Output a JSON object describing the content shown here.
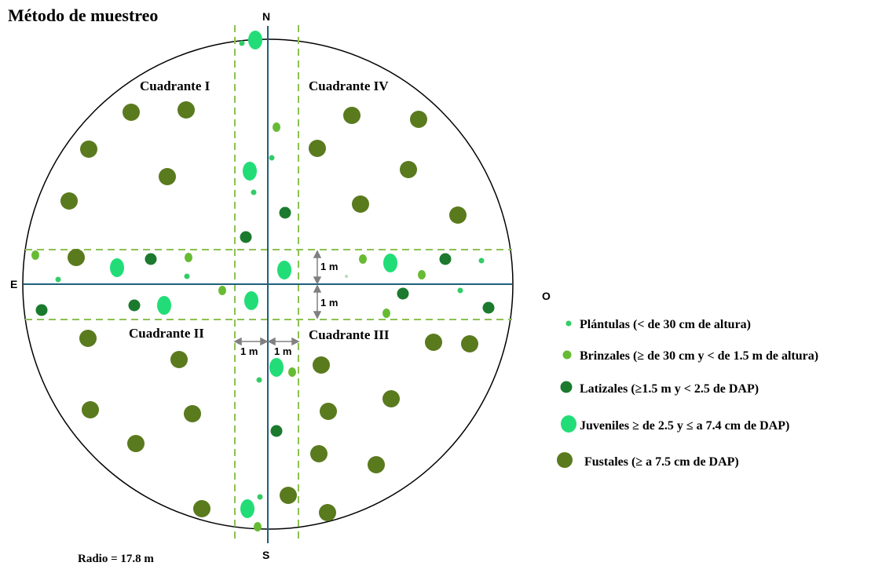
{
  "title": "Método de muestreo",
  "directions": {
    "north": "N",
    "south": "S",
    "east": "E",
    "west": "O"
  },
  "quadrants": [
    "Cuadrante I",
    "Cuadrante II",
    "Cuadrante III",
    "Cuadrante IV"
  ],
  "measures": {
    "one_meter": "1 m"
  },
  "radius_label": "Radio = 17.8 m",
  "legend": [
    {
      "key": "plantulas",
      "label": "Plántulas (< de 30 cm de altura)",
      "color": "#33cc66"
    },
    {
      "key": "brinzales",
      "label": "Brinzales (≥ de 30 cm y < de 1.5 m de altura)",
      "color": "#66bb33"
    },
    {
      "key": "latizales",
      "label": "Latizales (≥1.5 m y  < 2.5 de DAP)",
      "color": "#1b7a2e"
    },
    {
      "key": "juveniles",
      "label": "Juveniles ≥ de 2.5 y ≤ a 7.4 cm de DAP)",
      "color": "#22dd77"
    },
    {
      "key": "fustales",
      "label": "Fustales (≥ a 7.5 cm de DAP)",
      "color": "#5a7a1e"
    }
  ],
  "colors": {
    "axis": "#1f5f7a",
    "dashed_band": "#8cc152",
    "circle": "#000000",
    "arrow": "#808080"
  }
}
